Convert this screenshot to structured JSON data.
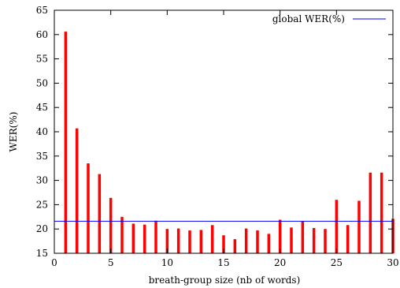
{
  "chart_data": {
    "type": "bar",
    "xlabel": "breath-group size (nb of words)",
    "ylabel": "WER(%)",
    "xlim": [
      0,
      30
    ],
    "ylim": [
      15,
      65
    ],
    "xticks": [
      0,
      5,
      10,
      15,
      20,
      25,
      30
    ],
    "yticks": [
      15,
      20,
      25,
      30,
      35,
      40,
      45,
      50,
      55,
      60,
      65
    ],
    "grid": false,
    "legend_position": "top-right",
    "x": [
      1,
      2,
      3,
      4,
      5,
      6,
      7,
      8,
      9,
      10,
      11,
      12,
      13,
      14,
      15,
      16,
      17,
      18,
      19,
      20,
      21,
      22,
      23,
      24,
      25,
      26,
      27,
      28,
      29,
      30
    ],
    "values": [
      60.6,
      40.7,
      33.5,
      31.3,
      26.4,
      22.5,
      21.1,
      20.9,
      21.7,
      20.0,
      20.1,
      19.7,
      19.8,
      20.8,
      18.7,
      17.9,
      20.1,
      19.7,
      19.0,
      21.9,
      20.3,
      21.6,
      20.2,
      20.0,
      26.0,
      20.8,
      25.8,
      31.6,
      31.6,
      22.1
    ],
    "bar_color": "#ff0000",
    "reference_line": {
      "name": "global WER(%)",
      "value": 21.6,
      "color": "#0000ff"
    }
  }
}
